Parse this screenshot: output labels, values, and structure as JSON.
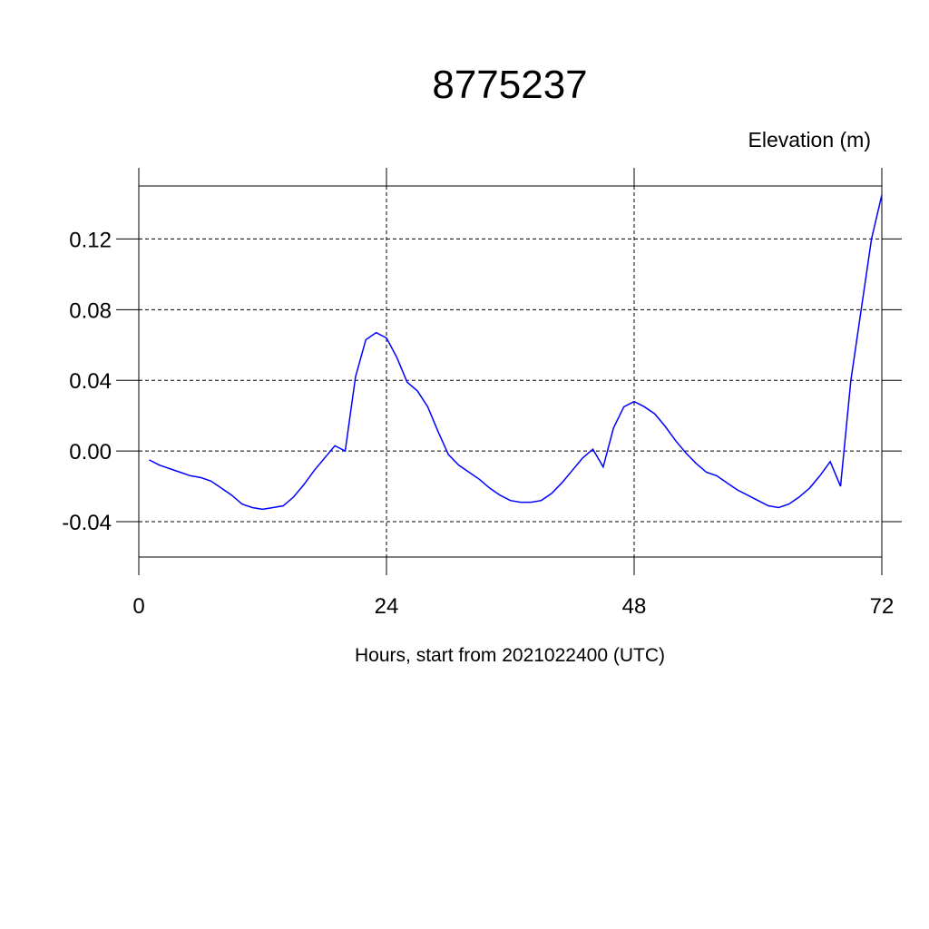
{
  "chart_data": {
    "type": "line",
    "title": "8775237",
    "subtitle": "Elevation (m)",
    "x_label": "Hours, start from 2021022400 (UTC)",
    "x": [
      1,
      2,
      3,
      4,
      5,
      6,
      7,
      8,
      9,
      10,
      11,
      12,
      13,
      14,
      15,
      16,
      17,
      18,
      19,
      20,
      21,
      22,
      23,
      24,
      25,
      26,
      27,
      28,
      29,
      30,
      31,
      32,
      33,
      34,
      35,
      36,
      37,
      38,
      39,
      40,
      41,
      42,
      43,
      44,
      45,
      46,
      47,
      48,
      49,
      50,
      51,
      52,
      53,
      54,
      55,
      56,
      57,
      58,
      59,
      60,
      61,
      62,
      63,
      64,
      65,
      66,
      67,
      68,
      69,
      70,
      71,
      72
    ],
    "series": [
      {
        "color": "#0000ff",
        "values": [
          -0.005,
          -0.008,
          -0.01,
          -0.012,
          -0.014,
          -0.015,
          -0.017,
          -0.021,
          -0.025,
          -0.03,
          -0.032,
          -0.033,
          -0.032,
          -0.031,
          -0.026,
          -0.019,
          -0.011,
          -0.004,
          0.003,
          0.0,
          0.042,
          0.063,
          0.067,
          0.064,
          0.053,
          0.039,
          0.034,
          0.025,
          0.011,
          -0.002,
          -0.008,
          -0.012,
          -0.016,
          -0.021,
          -0.025,
          -0.028,
          -0.029,
          -0.029,
          -0.028,
          -0.024,
          -0.018,
          -0.011,
          -0.004,
          0.001,
          -0.009,
          0.013,
          0.025,
          0.028,
          0.025,
          0.021,
          0.014,
          0.006,
          -0.001,
          -0.007,
          -0.012,
          -0.014,
          -0.018,
          -0.022,
          -0.025,
          -0.028,
          -0.031,
          -0.032,
          -0.03,
          -0.026,
          -0.021,
          -0.014,
          -0.006,
          -0.02,
          0.04,
          0.08,
          0.12,
          0.145
        ]
      }
    ],
    "xlim": [
      0,
      72
    ],
    "xticks": [
      0,
      24,
      48,
      72
    ],
    "ylim": [
      -0.06,
      0.15
    ],
    "yticks": [
      -0.04,
      {
        "value": 0,
        "label": "0.00"
      },
      0.04,
      0.08,
      0.12
    ],
    "grid": true
  }
}
